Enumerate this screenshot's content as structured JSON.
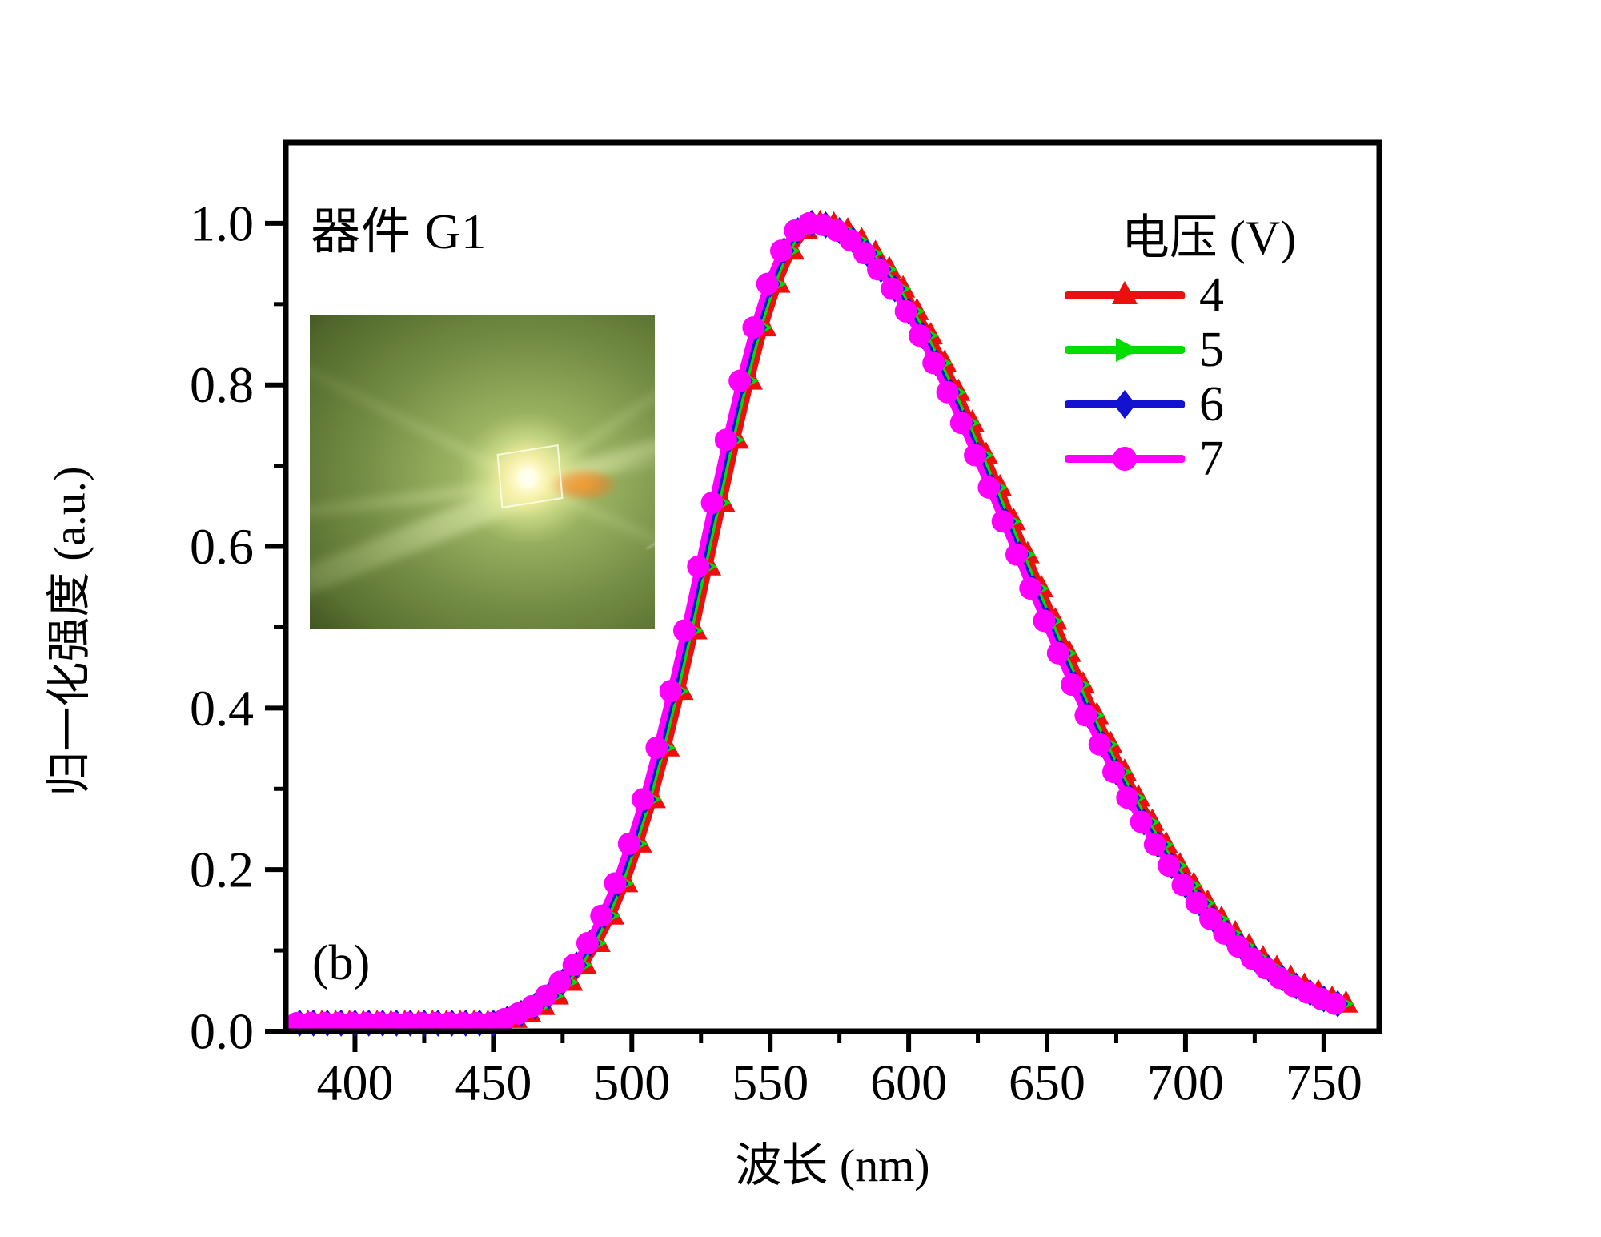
{
  "figure": {
    "device_label": "器件 G1",
    "panel_label": "(b)"
  },
  "axes": {
    "x": {
      "label": "波长 (nm)",
      "min": 375,
      "max": 770,
      "major_ticks": [
        400,
        450,
        500,
        550,
        600,
        650,
        700,
        750
      ],
      "major_tick_labels": [
        "400",
        "450",
        "500",
        "550",
        "600",
        "650",
        "700",
        "750"
      ],
      "minor_ticks": [
        425,
        475,
        525,
        575,
        625,
        675,
        725
      ]
    },
    "y": {
      "label": "归一化强度 (a.u.)",
      "min": 0,
      "max": 1.1,
      "major_ticks": [
        0.0,
        0.2,
        0.4,
        0.6,
        0.8,
        1.0
      ],
      "major_tick_labels": [
        "0.0",
        "0.2",
        "0.4",
        "0.6",
        "0.8",
        "1.0"
      ],
      "minor_ticks": [
        0.1,
        0.3,
        0.5,
        0.7,
        0.9
      ]
    }
  },
  "legend": {
    "title": "电压 (V)",
    "items": [
      {
        "label": "4",
        "color": "#ed0e0e",
        "marker": "triangle-up"
      },
      {
        "label": "5",
        "color": "#00dd00",
        "marker": "triangle-right"
      },
      {
        "label": "6",
        "color": "#1212d0",
        "marker": "diamond"
      },
      {
        "label": "7",
        "color": "#ff00ff",
        "marker": "circle"
      }
    ]
  },
  "inset": {
    "description": "photograph of the operating LED device emitting yellow-green light with radiating beams"
  },
  "chart_data": {
    "type": "line",
    "title": "器件 G1 electroluminescence spectra",
    "xlabel": "波长 (nm)",
    "ylabel": "归一化强度 (a.u.)",
    "xlim": [
      375,
      770
    ],
    "ylim": [
      0,
      1.1
    ],
    "grid": false,
    "legend_position": "upper right",
    "peak_wavelength_nm": 565,
    "x": [
      380,
      385,
      390,
      395,
      400,
      405,
      410,
      415,
      420,
      425,
      430,
      435,
      440,
      445,
      450,
      455,
      460,
      465,
      470,
      475,
      480,
      485,
      490,
      495,
      500,
      505,
      510,
      515,
      520,
      525,
      530,
      535,
      540,
      545,
      550,
      555,
      560,
      565,
      570,
      575,
      580,
      585,
      590,
      595,
      600,
      605,
      610,
      615,
      620,
      625,
      630,
      635,
      640,
      645,
      650,
      655,
      660,
      665,
      670,
      675,
      680,
      685,
      690,
      695,
      700,
      705,
      710,
      715,
      720,
      725,
      730,
      735,
      740,
      745,
      750,
      755
    ],
    "base_values": [
      0.01,
      0.01,
      0.01,
      0.01,
      0.01,
      0.01,
      0.01,
      0.01,
      0.01,
      0.01,
      0.01,
      0.01,
      0.01,
      0.01,
      0.01,
      0.015,
      0.022,
      0.031,
      0.044,
      0.061,
      0.082,
      0.109,
      0.143,
      0.183,
      0.232,
      0.287,
      0.351,
      0.421,
      0.496,
      0.575,
      0.654,
      0.732,
      0.805,
      0.871,
      0.925,
      0.966,
      0.991,
      1.0,
      0.998,
      0.991,
      0.979,
      0.963,
      0.943,
      0.919,
      0.891,
      0.861,
      0.827,
      0.791,
      0.753,
      0.713,
      0.673,
      0.631,
      0.59,
      0.548,
      0.508,
      0.468,
      0.429,
      0.391,
      0.355,
      0.321,
      0.289,
      0.259,
      0.231,
      0.205,
      0.181,
      0.159,
      0.139,
      0.121,
      0.105,
      0.09,
      0.078,
      0.066,
      0.056,
      0.048,
      0.04,
      0.034
    ],
    "series": [
      {
        "name": "4",
        "voltage_v": 4,
        "color": "#ed0e0e",
        "marker": "triangle-up",
        "peak_shift_nm": 3,
        "values_ref": "base_values"
      },
      {
        "name": "5",
        "voltage_v": 5,
        "color": "#00dd00",
        "marker": "triangle-right",
        "peak_shift_nm": 1,
        "values_ref": "base_values"
      },
      {
        "name": "6",
        "voltage_v": 6,
        "color": "#1212d0",
        "marker": "diamond",
        "peak_shift_nm": 0,
        "values_ref": "base_values"
      },
      {
        "name": "7",
        "voltage_v": 7,
        "color": "#ff00ff",
        "marker": "circle",
        "peak_shift_nm": -1,
        "values_ref": "base_values"
      }
    ]
  }
}
